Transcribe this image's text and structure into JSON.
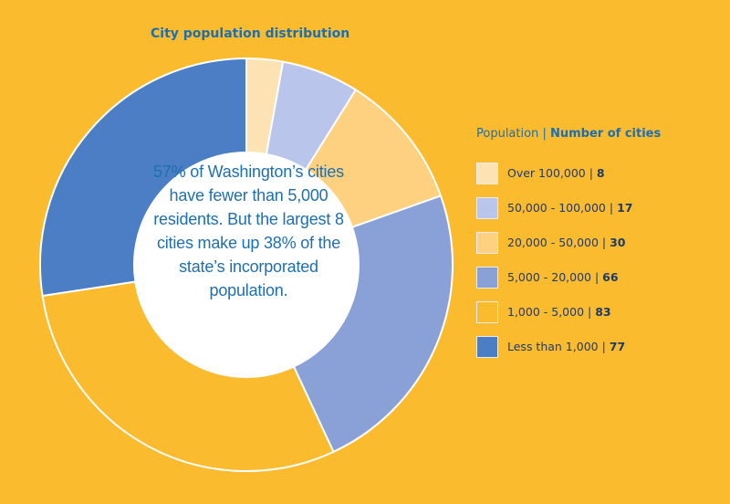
{
  "chart_data": {
    "type": "pie",
    "title": "City population distribution",
    "center_text": "57% of Washington’s cities have fewer than 5,000 residents. But the largest 8 cities make up 38% of the state’s incorporated population.",
    "legend_header": {
      "left": "Population",
      "sep": " | ",
      "right": "Number of cities"
    },
    "categories": [
      "Over 100,000",
      "50,000 - 100,000",
      "20,000 - 50,000",
      "5,000 - 20,000",
      "1,000 - 5,000",
      "Less than 1,000"
    ],
    "values": [
      8,
      17,
      30,
      66,
      83,
      77
    ],
    "colors": [
      "#fde3b3",
      "#b9c5ea",
      "#fdd17f",
      "#8aa1d8",
      "#fbbb2f",
      "#4b7ec4"
    ],
    "legend_position": "right"
  }
}
